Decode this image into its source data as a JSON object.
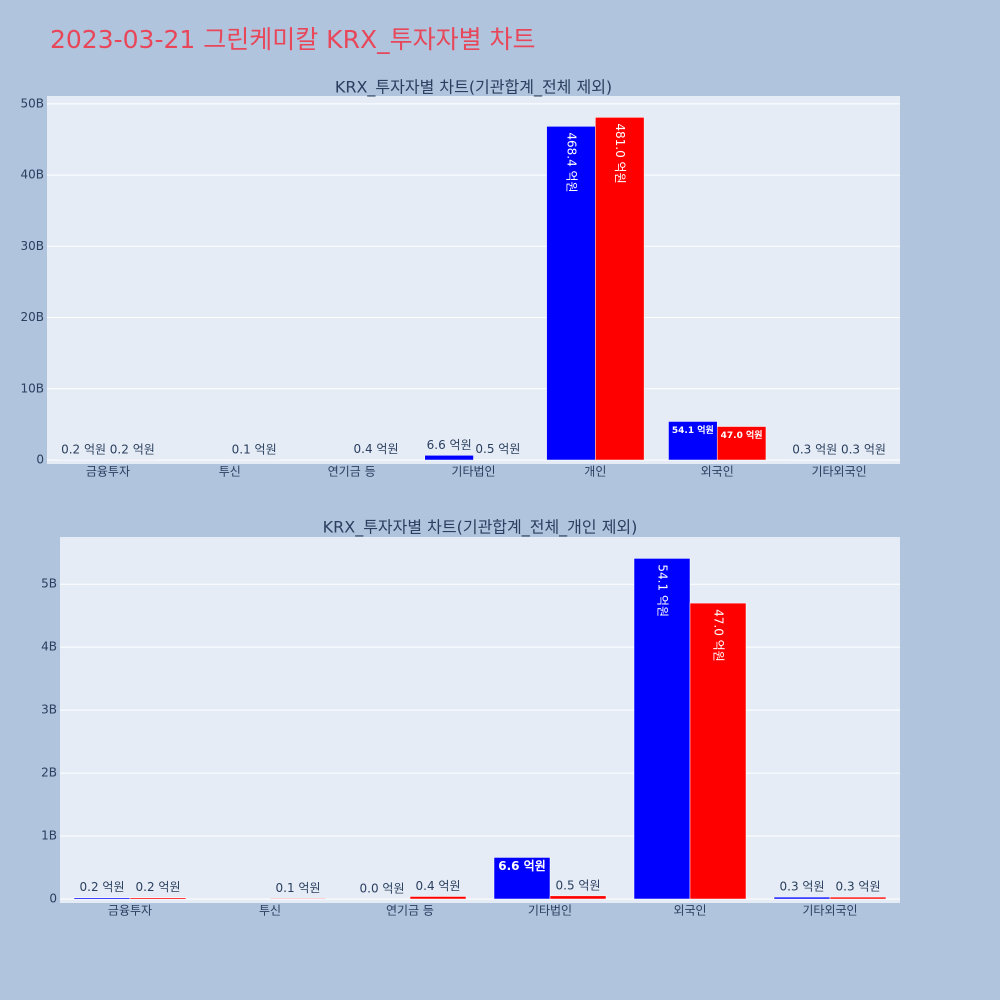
{
  "title": "2023-03-21 그린케미칼 KRX_투자자별 차트",
  "chart_data": [
    {
      "type": "bar",
      "title": "KRX_투자자별 차트(기관합계_전체 제외)",
      "categories": [
        "금융투자",
        "투신",
        "연기금 등",
        "기타법인",
        "개인",
        "외국인",
        "기타외국인"
      ],
      "series": [
        {
          "color": "#0000ff",
          "values": [
            20000000,
            null,
            0,
            660000000,
            46840000000,
            5410000000,
            30000000
          ],
          "value_labels": [
            "0.2 억원",
            null,
            null,
            "6.6 억원",
            "468.4 억원",
            "54.1 억원",
            "0.3 억원"
          ]
        },
        {
          "color": "#ff0000",
          "values": [
            20000000,
            10000000,
            40000000,
            50000000,
            48100000000,
            4700000000,
            30000000
          ],
          "value_labels": [
            "0.2 억원",
            "0.1 억원",
            "0.4 억원",
            "0.5 억원",
            "481.0 억원",
            "47.0 억원",
            "0.3 억원"
          ]
        }
      ],
      "ylim": [
        0,
        51100000000
      ],
      "yticks": [
        0,
        {
          "value": 10000000000,
          "label": "10B"
        },
        {
          "value": 20000000000,
          "label": "20B"
        },
        {
          "value": 30000000000,
          "label": "30B"
        },
        {
          "value": 40000000000,
          "label": "40B"
        },
        {
          "value": 50000000000,
          "label": "50B"
        }
      ],
      "grid": true
    },
    {
      "type": "bar",
      "title": "KRX_투자자별 차트(기관합계_전체_개인 제외)",
      "categories": [
        "금융투자",
        "투신",
        "연기금 등",
        "기타법인",
        "외국인",
        "기타외국인"
      ],
      "series": [
        {
          "color": "#0000ff",
          "values": [
            20000000,
            null,
            0,
            660000000,
            5410000000,
            30000000
          ],
          "value_labels": [
            "0.2 억원",
            null,
            "0.0 억원",
            "6.6 억원",
            "54.1 억원",
            "0.3 억원"
          ]
        },
        {
          "color": "#ff0000",
          "values": [
            20000000,
            10000000,
            40000000,
            50000000,
            4700000000,
            30000000
          ],
          "value_labels": [
            "0.2 억원",
            "0.1 억원",
            "0.4 억원",
            "0.5 억원",
            "47.0 억원",
            "0.3 억원"
          ]
        }
      ],
      "ylim": [
        0,
        5750000000
      ],
      "yticks": [
        0,
        {
          "value": 1000000000,
          "label": "1B"
        },
        {
          "value": 2000000000,
          "label": "2B"
        },
        {
          "value": 3000000000,
          "label": "3B"
        },
        {
          "value": 4000000000,
          "label": "4B"
        },
        {
          "value": 5000000000,
          "label": "5B"
        }
      ],
      "grid": true
    }
  ]
}
